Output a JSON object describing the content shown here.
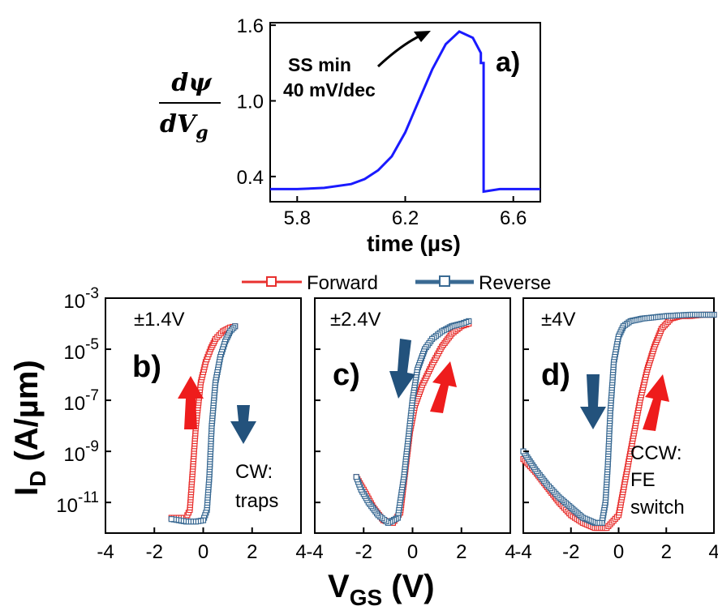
{
  "chart_data": [
    {
      "type": "line",
      "panel": "a)",
      "xlabel": "time (µs)",
      "ylabel_num": "dψ",
      "ylabel_den_main": "dV",
      "ylabel_den_sub": "g",
      "xlim": [
        5.7,
        6.7
      ],
      "ylim": [
        0.2,
        1.62
      ],
      "xticks": [
        5.8,
        6.2,
        6.6
      ],
      "xtick_labels": [
        "5.8",
        "6.2",
        "6.6"
      ],
      "yticks": [
        0.4,
        1.0,
        1.6
      ],
      "ytick_labels": [
        "0.4",
        "1.0",
        "1.6"
      ],
      "annotation_line1": "SS min",
      "annotation_line2": "40 mV/dec",
      "color": "#1a1aff",
      "series": [
        {
          "x": [
            5.7,
            5.8,
            5.9,
            6.0,
            6.05,
            6.1,
            6.15,
            6.2,
            6.25,
            6.3,
            6.35,
            6.4,
            6.45,
            6.48,
            6.48,
            6.49,
            6.49,
            6.55,
            6.6,
            6.7
          ],
          "y": [
            0.3,
            0.3,
            0.31,
            0.34,
            0.38,
            0.45,
            0.56,
            0.75,
            1.0,
            1.25,
            1.45,
            1.55,
            1.5,
            1.38,
            1.3,
            1.3,
            0.28,
            0.3,
            0.3,
            0.3
          ]
        }
      ]
    },
    {
      "type": "scatter",
      "panel": "b)",
      "label": "±1.4V",
      "note_line1": "CW:",
      "note_line2": "traps",
      "xlim": [
        -4,
        4
      ],
      "series": [
        {
          "name": "Forward",
          "x": [
            -1.3,
            -1.0,
            -0.7,
            -0.55,
            -0.45,
            -0.3,
            -0.1,
            0.1,
            0.3,
            0.5,
            0.8,
            1.1,
            1.3
          ],
          "y": [
            -11.6,
            -11.6,
            -11.6,
            -11.3,
            -10.0,
            -8.0,
            -6.3,
            -5.5,
            -5.0,
            -4.6,
            -4.3,
            -4.15,
            -4.1
          ]
        },
        {
          "name": "Reverse",
          "x": [
            1.3,
            1.1,
            0.9,
            0.7,
            0.5,
            0.35,
            0.25,
            0.15,
            0.0,
            -0.3,
            -0.7,
            -1.0,
            -1.3
          ],
          "y": [
            -4.1,
            -4.3,
            -4.7,
            -5.3,
            -6.3,
            -8.0,
            -10.0,
            -11.3,
            -11.7,
            -11.75,
            -11.75,
            -11.7,
            -11.65
          ]
        }
      ]
    },
    {
      "type": "scatter",
      "panel": "c)",
      "label": "±2.4V",
      "xlim": [
        -4,
        4
      ],
      "series": [
        {
          "name": "Forward",
          "x": [
            -2.3,
            -2.0,
            -1.6,
            -1.2,
            -0.8,
            -0.5,
            -0.3,
            -0.1,
            0.1,
            0.4,
            0.8,
            1.2,
            1.6,
            2.0,
            2.3
          ],
          "y": [
            -10.0,
            -10.5,
            -11.2,
            -11.7,
            -11.8,
            -11.4,
            -9.8,
            -8.2,
            -7.2,
            -6.4,
            -5.6,
            -4.9,
            -4.4,
            -4.1,
            -4.0
          ]
        },
        {
          "name": "Reverse",
          "x": [
            2.3,
            2.0,
            1.6,
            1.2,
            0.8,
            0.5,
            0.2,
            0.0,
            -0.15,
            -0.35,
            -0.6,
            -1.0,
            -1.4,
            -1.8,
            -2.1,
            -2.3
          ],
          "y": [
            -3.9,
            -4.0,
            -4.1,
            -4.3,
            -4.6,
            -5.0,
            -5.8,
            -7.0,
            -8.3,
            -10.0,
            -11.6,
            -11.8,
            -11.5,
            -11.0,
            -10.5,
            -10.0
          ]
        }
      ]
    },
    {
      "type": "scatter",
      "panel": "d)",
      "label": "±4V",
      "note_line1": "CCW:",
      "note_line2": "FE",
      "note_line3": "switch",
      "xlim": [
        -4,
        4
      ],
      "series": [
        {
          "name": "Forward",
          "x": [
            -4.0,
            -3.5,
            -3.0,
            -2.5,
            -2.0,
            -1.5,
            -1.0,
            -0.5,
            0.0,
            0.3,
            0.6,
            0.9,
            1.2,
            1.5,
            1.8,
            2.2,
            2.6,
            3.0,
            3.5,
            4.0
          ],
          "y": [
            -9.3,
            -9.8,
            -10.4,
            -11.0,
            -11.5,
            -11.8,
            -12.0,
            -12.0,
            -11.5,
            -10.0,
            -8.5,
            -7.0,
            -5.8,
            -4.9,
            -4.2,
            -3.8,
            -3.7,
            -3.7,
            -3.65,
            -3.65
          ]
        },
        {
          "name": "Reverse",
          "x": [
            4.0,
            3.0,
            2.0,
            1.0,
            0.5,
            0.2,
            0.0,
            -0.2,
            -0.35,
            -0.45,
            -0.55,
            -0.7,
            -1.0,
            -1.5,
            -2.0,
            -2.5,
            -3.0,
            -3.5,
            -4.0
          ],
          "y": [
            -3.65,
            -3.65,
            -3.7,
            -3.8,
            -3.9,
            -4.1,
            -4.5,
            -5.5,
            -7.5,
            -9.5,
            -11.0,
            -11.8,
            -11.8,
            -11.6,
            -11.2,
            -10.8,
            -10.3,
            -9.7,
            -9.0
          ]
        }
      ]
    }
  ],
  "shared": {
    "legend": [
      "Forward",
      "Reverse"
    ],
    "forward_color": "#e8312f",
    "reverse_color": "#3a6a93",
    "ylabel_main": "I",
    "ylabel_sub": "D",
    "ylabel_rest": " (A/µm)",
    "xlabel_main": "V",
    "xlabel_sub": "GS",
    "xlabel_rest": " (V)",
    "ylim_log": [
      -12.2,
      -3
    ],
    "yticks_exp": [
      -3,
      -5,
      -7,
      -9,
      -11
    ],
    "ytick_base": "10",
    "ytick_sup": [
      "-3",
      "-5",
      "-7",
      "-9",
      "-11"
    ],
    "xticks": [
      -4,
      -2,
      0,
      2,
      4
    ],
    "xtick_labels": [
      "-4",
      "-2",
      "0",
      "2",
      "4"
    ]
  }
}
